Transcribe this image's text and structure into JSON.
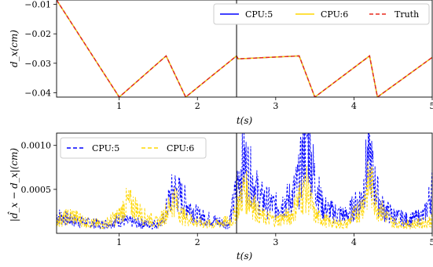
{
  "chart_data": [
    {
      "type": "line",
      "title": "",
      "xlabel": "t(s)",
      "ylabel": "d_x(cm)",
      "xlim": [
        0.2,
        5.0
      ],
      "ylim": [
        -0.0415,
        -0.0085
      ],
      "xticks": [
        "1",
        "2",
        "3",
        "4",
        "5"
      ],
      "yticks": [
        "-0.01",
        "-0.02",
        "-0.03",
        "-0.04"
      ],
      "vline_x": 2.5,
      "legend": {
        "placement": "top-right",
        "entries": [
          "CPU:5",
          "CPU:6",
          "Truth"
        ]
      },
      "series": [
        {
          "name": "CPU:5",
          "color": "#0000ff",
          "style": "solid",
          "x": [
            0.2,
            1.0,
            1.6,
            1.85,
            2.5,
            2.52,
            3.3,
            3.5,
            4.2,
            4.3,
            5.0
          ],
          "y": [
            -0.0085,
            -0.0415,
            -0.0275,
            -0.0415,
            -0.0275,
            -0.0285,
            -0.0275,
            -0.0415,
            -0.0275,
            -0.0415,
            -0.028
          ]
        },
        {
          "name": "CPU:6",
          "color": "#ffd700",
          "style": "solid",
          "x": [
            0.2,
            1.0,
            1.6,
            1.85,
            2.5,
            2.52,
            3.3,
            3.5,
            4.2,
            4.3,
            5.0
          ],
          "y": [
            -0.0085,
            -0.0415,
            -0.0275,
            -0.0415,
            -0.0275,
            -0.0285,
            -0.0275,
            -0.0415,
            -0.0275,
            -0.0415,
            -0.028
          ]
        },
        {
          "name": "Truth",
          "color": "#e8291c",
          "style": "dashed",
          "x": [
            0.2,
            1.0,
            1.6,
            1.85,
            2.5,
            2.52,
            3.3,
            3.5,
            4.2,
            4.3,
            5.0
          ],
          "y": [
            -0.0085,
            -0.0415,
            -0.0275,
            -0.0415,
            -0.0275,
            -0.0285,
            -0.0275,
            -0.0415,
            -0.0275,
            -0.0415,
            -0.028
          ]
        }
      ]
    },
    {
      "type": "line",
      "title": "",
      "xlabel": "t(s)",
      "ylabel": "|d̂_x − d_x|(cm)",
      "xlim": [
        0.2,
        5.0
      ],
      "ylim": [
        0,
        0.00114
      ],
      "xticks": [
        "1",
        "2",
        "3",
        "4",
        "5"
      ],
      "yticks": [
        "0.0005",
        "0.0010"
      ],
      "vline_x": 2.5,
      "legend": {
        "placement": "top-left",
        "entries": [
          "CPU:5",
          "CPU:6"
        ]
      },
      "series": [
        {
          "name": "CPU:5",
          "color": "#0000ff",
          "style": "dashed",
          "x": [
            0.2,
            0.4,
            0.6,
            0.8,
            1.0,
            1.2,
            1.4,
            1.55,
            1.65,
            1.7,
            1.85,
            2.0,
            2.2,
            2.4,
            2.45,
            2.55,
            2.6,
            2.7,
            2.8,
            3.0,
            3.2,
            3.3,
            3.35,
            3.4,
            3.5,
            3.6,
            3.7,
            3.9,
            4.0,
            4.1,
            4.15,
            4.2,
            4.25,
            4.35,
            4.5,
            4.7,
            4.9,
            5.0
          ],
          "y": [
            0.0002,
            0.00015,
            0.00012,
            0.0001,
            0.00015,
            0.00012,
            0.0001,
            0.00012,
            0.0004,
            0.0005,
            0.00035,
            0.0002,
            0.00015,
            0.0001,
            0.0003,
            0.0007,
            0.0008,
            0.0006,
            0.0004,
            0.0003,
            0.0004,
            0.0006,
            0.0009,
            0.00112,
            0.0006,
            0.0003,
            0.00025,
            0.0002,
            0.0003,
            0.0004,
            0.0007,
            0.0009,
            0.0006,
            0.0003,
            0.0002,
            0.00015,
            0.0002,
            0.0005
          ]
        },
        {
          "name": "CPU:6",
          "color": "#ffd700",
          "style": "dashed",
          "x": [
            0.2,
            0.4,
            0.6,
            0.8,
            1.0,
            1.1,
            1.2,
            1.3,
            1.5,
            1.65,
            1.7,
            1.8,
            2.0,
            2.2,
            2.45,
            2.55,
            2.6,
            2.8,
            3.0,
            3.2,
            3.3,
            3.4,
            3.5,
            3.7,
            3.9,
            4.1,
            4.2,
            4.3,
            4.5,
            4.7,
            4.9,
            5.0
          ],
          "y": [
            0.00015,
            0.0002,
            0.00012,
            0.0001,
            0.0002,
            0.00035,
            0.0003,
            0.0002,
            0.00012,
            0.0003,
            0.0004,
            0.0002,
            0.00012,
            0.0001,
            0.00015,
            0.0004,
            0.0005,
            0.0002,
            0.00015,
            0.0002,
            0.0004,
            0.0005,
            0.0002,
            0.00012,
            0.0001,
            0.0003,
            0.0006,
            0.0003,
            0.00012,
            0.0001,
            0.00012,
            0.00015
          ]
        }
      ]
    }
  ]
}
